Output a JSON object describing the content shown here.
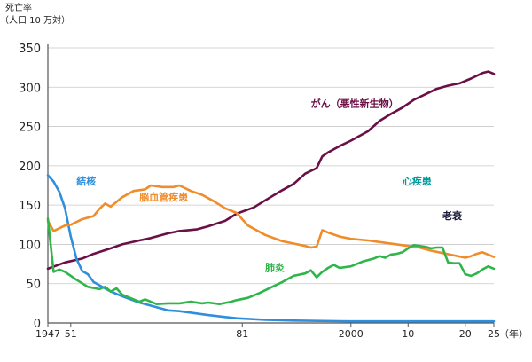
{
  "chart_data": {
    "type": "line",
    "title": "",
    "ylabel": [
      "死亡率",
      "（人口 10 万対）"
    ],
    "xlabel": "",
    "x_unit": "（年）",
    "ylim": [
      0,
      350
    ],
    "xlim": [
      1947,
      2025
    ],
    "grid": "horizontal",
    "y_ticks": [
      0,
      50,
      100,
      150,
      200,
      250,
      300,
      350
    ],
    "x_ticks": [
      {
        "value": 1947,
        "label": "1947"
      },
      {
        "value": 1951,
        "label": "51"
      },
      {
        "value": 1981,
        "label": "81"
      },
      {
        "value": 2000,
        "label": "2000"
      },
      {
        "value": 2010,
        "label": "10"
      },
      {
        "value": 2020,
        "label": "20"
      },
      {
        "value": 2025,
        "label": "25"
      }
    ],
    "series": [
      {
        "name": "がん（悪性新生物）",
        "color": "#6b1046",
        "label_at": [
          1993,
          275
        ],
        "points": [
          [
            1947,
            69
          ],
          [
            1950,
            77
          ],
          [
            1953,
            82
          ],
          [
            1955,
            88
          ],
          [
            1958,
            95
          ],
          [
            1960,
            100
          ],
          [
            1963,
            105
          ],
          [
            1965,
            108
          ],
          [
            1968,
            114
          ],
          [
            1970,
            117
          ],
          [
            1973,
            119
          ],
          [
            1975,
            123
          ],
          [
            1978,
            130
          ],
          [
            1980,
            139
          ],
          [
            1983,
            147
          ],
          [
            1985,
            156
          ],
          [
            1988,
            169
          ],
          [
            1990,
            177
          ],
          [
            1992,
            190
          ],
          [
            1994,
            197
          ],
          [
            1995,
            212
          ],
          [
            1996,
            217
          ],
          [
            1998,
            225
          ],
          [
            2000,
            232
          ],
          [
            2003,
            244
          ],
          [
            2005,
            257
          ],
          [
            2007,
            266
          ],
          [
            2009,
            274
          ],
          [
            2011,
            284
          ],
          [
            2013,
            291
          ],
          [
            2015,
            298
          ],
          [
            2017,
            302
          ],
          [
            2019,
            305
          ],
          [
            2021,
            311
          ],
          [
            2023,
            318
          ],
          [
            2024,
            320
          ],
          [
            2025,
            317
          ]
        ]
      },
      {
        "name": "結核",
        "color": "#2f8fdc",
        "label_at": [
          1952,
          176
        ],
        "points": [
          [
            1947,
            188
          ],
          [
            1948,
            180
          ],
          [
            1949,
            167
          ],
          [
            1950,
            146
          ],
          [
            1951,
            110
          ],
          [
            1952,
            82
          ],
          [
            1953,
            66
          ],
          [
            1954,
            62
          ],
          [
            1955,
            52
          ],
          [
            1958,
            40
          ],
          [
            1960,
            34
          ],
          [
            1963,
            26
          ],
          [
            1965,
            22
          ],
          [
            1968,
            16
          ],
          [
            1970,
            15
          ],
          [
            1975,
            10
          ],
          [
            1980,
            6
          ],
          [
            1985,
            4
          ],
          [
            1990,
            3
          ],
          [
            2000,
            2
          ],
          [
            2010,
            2
          ],
          [
            2020,
            2
          ],
          [
            2025,
            2
          ]
        ]
      },
      {
        "name": "脳血管疾患",
        "color": "#f08c2a",
        "label_at": [
          1963,
          156
        ],
        "points": [
          [
            1947,
            130
          ],
          [
            1948,
            117
          ],
          [
            1950,
            124
          ],
          [
            1951,
            125
          ],
          [
            1953,
            132
          ],
          [
            1955,
            136
          ],
          [
            1956,
            145
          ],
          [
            1957,
            152
          ],
          [
            1958,
            148
          ],
          [
            1960,
            160
          ],
          [
            1962,
            168
          ],
          [
            1964,
            170
          ],
          [
            1965,
            175
          ],
          [
            1967,
            173
          ],
          [
            1969,
            173
          ],
          [
            1970,
            175
          ],
          [
            1972,
            168
          ],
          [
            1974,
            163
          ],
          [
            1976,
            155
          ],
          [
            1978,
            146
          ],
          [
            1980,
            140
          ],
          [
            1982,
            124
          ],
          [
            1985,
            112
          ],
          [
            1988,
            104
          ],
          [
            1990,
            101
          ],
          [
            1992,
            98
          ],
          [
            1993,
            96
          ],
          [
            1994,
            97
          ],
          [
            1995,
            118
          ],
          [
            1996,
            115
          ],
          [
            1998,
            110
          ],
          [
            2000,
            107
          ],
          [
            2003,
            105
          ],
          [
            2006,
            102
          ],
          [
            2008,
            100
          ],
          [
            2010,
            98
          ],
          [
            2012,
            96
          ],
          [
            2014,
            92
          ],
          [
            2016,
            89
          ],
          [
            2018,
            86
          ],
          [
            2020,
            83
          ],
          [
            2021,
            85
          ],
          [
            2022,
            88
          ],
          [
            2023,
            90
          ],
          [
            2025,
            84
          ]
        ]
      },
      {
        "name": "心疾患",
        "color": "#009a9a",
        "label_at": [
          2009,
          176
        ],
        "points": []
      },
      {
        "name": "老衰",
        "color": "#1a1a3a",
        "label_at": [
          2016,
          132
        ],
        "points": []
      },
      {
        "name": "肺炎",
        "color": "#2fb54a",
        "label_at": [
          1985,
          66
        ],
        "points": [
          [
            1947,
            133
          ],
          [
            1948,
            65
          ],
          [
            1949,
            68
          ],
          [
            1950,
            65
          ],
          [
            1952,
            55
          ],
          [
            1954,
            46
          ],
          [
            1956,
            43
          ],
          [
            1957,
            46
          ],
          [
            1958,
            40
          ],
          [
            1959,
            44
          ],
          [
            1960,
            36
          ],
          [
            1962,
            30
          ],
          [
            1963,
            27
          ],
          [
            1964,
            30
          ],
          [
            1965,
            27
          ],
          [
            1966,
            24
          ],
          [
            1968,
            25
          ],
          [
            1970,
            25
          ],
          [
            1972,
            27
          ],
          [
            1974,
            25
          ],
          [
            1975,
            26
          ],
          [
            1977,
            24
          ],
          [
            1979,
            27
          ],
          [
            1980,
            29
          ],
          [
            1982,
            32
          ],
          [
            1984,
            38
          ],
          [
            1986,
            45
          ],
          [
            1988,
            52
          ],
          [
            1990,
            60
          ],
          [
            1992,
            63
          ],
          [
            1993,
            67
          ],
          [
            1994,
            58
          ],
          [
            1995,
            65
          ],
          [
            1996,
            70
          ],
          [
            1997,
            74
          ],
          [
            1998,
            70
          ],
          [
            2000,
            72
          ],
          [
            2002,
            78
          ],
          [
            2004,
            82
          ],
          [
            2005,
            85
          ],
          [
            2006,
            83
          ],
          [
            2007,
            87
          ],
          [
            2008,
            88
          ],
          [
            2009,
            90
          ],
          [
            2010,
            95
          ],
          [
            2011,
            99
          ],
          [
            2012,
            98
          ],
          [
            2013,
            97
          ],
          [
            2014,
            95
          ],
          [
            2015,
            96
          ],
          [
            2016,
            96
          ],
          [
            2017,
            77
          ],
          [
            2018,
            76
          ],
          [
            2019,
            76
          ],
          [
            2020,
            62
          ],
          [
            2021,
            60
          ],
          [
            2022,
            63
          ],
          [
            2023,
            68
          ],
          [
            2024,
            72
          ],
          [
            2025,
            69
          ]
        ]
      }
    ]
  }
}
